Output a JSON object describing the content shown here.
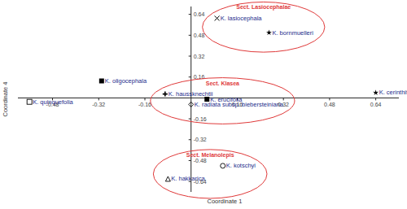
{
  "chart_data": {
    "type": "scatter",
    "xlabel": "Coordinate 1",
    "ylabel": "Coordinate 4",
    "xlim": [
      -0.6,
      0.72
    ],
    "ylim": [
      -0.72,
      0.7
    ],
    "xticks": [
      -0.48,
      -0.32,
      -0.16,
      0.16,
      0.32,
      0.48,
      0.64
    ],
    "yticks": [
      -0.64,
      -0.48,
      -0.32,
      -0.16,
      0.16,
      0.32,
      0.48,
      0.64
    ],
    "grid": false,
    "series": [
      {
        "name": "K. lasiocephala",
        "x": [
          0.09
        ],
        "values": [
          0.61
        ],
        "marker": "cross",
        "color": "#000000"
      },
      {
        "name": "K. bornmuelleri",
        "x": [
          0.27
        ],
        "values": [
          0.5
        ],
        "marker": "star",
        "color": "#000000"
      },
      {
        "name": "K. oligocephala",
        "x": [
          -0.31
        ],
        "values": [
          0.13
        ],
        "marker": "square",
        "color": "#000000"
      },
      {
        "name": "K. quinquefolia",
        "x": [
          -0.56
        ],
        "values": [
          -0.03
        ],
        "marker": "square-open",
        "color": "#000000"
      },
      {
        "name": "K. haussknechtii",
        "x": [
          -0.09
        ],
        "values": [
          0.03
        ],
        "marker": "plus",
        "color": "#000000"
      },
      {
        "name": "K. erucifolia",
        "x": [
          0.055
        ],
        "values": [
          -0.01
        ],
        "marker": "square",
        "color": "#000000"
      },
      {
        "name": "K. radiata subsp. biebersteiniana",
        "x": [
          0.0
        ],
        "values": [
          -0.05
        ],
        "marker": "diamond-open",
        "color": "#000000"
      },
      {
        "name": "K. cerinthifolia",
        "x": [
          0.64
        ],
        "values": [
          0.04
        ],
        "marker": "star",
        "color": "#000000"
      },
      {
        "name": "K. kotschyi",
        "x": [
          0.11
        ],
        "values": [
          -0.52
        ],
        "marker": "circle-open",
        "color": "#000000"
      },
      {
        "name": "K. hakkarica",
        "x": [
          -0.08
        ],
        "values": [
          -0.62
        ],
        "marker": "triangle-open",
        "color": "#000000"
      }
    ],
    "annotations": [
      {
        "text": "Sect. Lasiocephalae",
        "color": "#e03a3a",
        "members": [
          "K. lasiocephala",
          "K. bornmuelleri"
        ]
      },
      {
        "text": "Sect. Klasea",
        "color": "#e03a3a",
        "members": [
          "K. haussknechtii",
          "K. erucifolia",
          "K. radiata subsp. biebersteiniana"
        ]
      },
      {
        "text": "Sect. Melanolepis",
        "color": "#e03a3a",
        "members": [
          "K. kotschyi",
          "K. hakkarica"
        ]
      }
    ]
  }
}
